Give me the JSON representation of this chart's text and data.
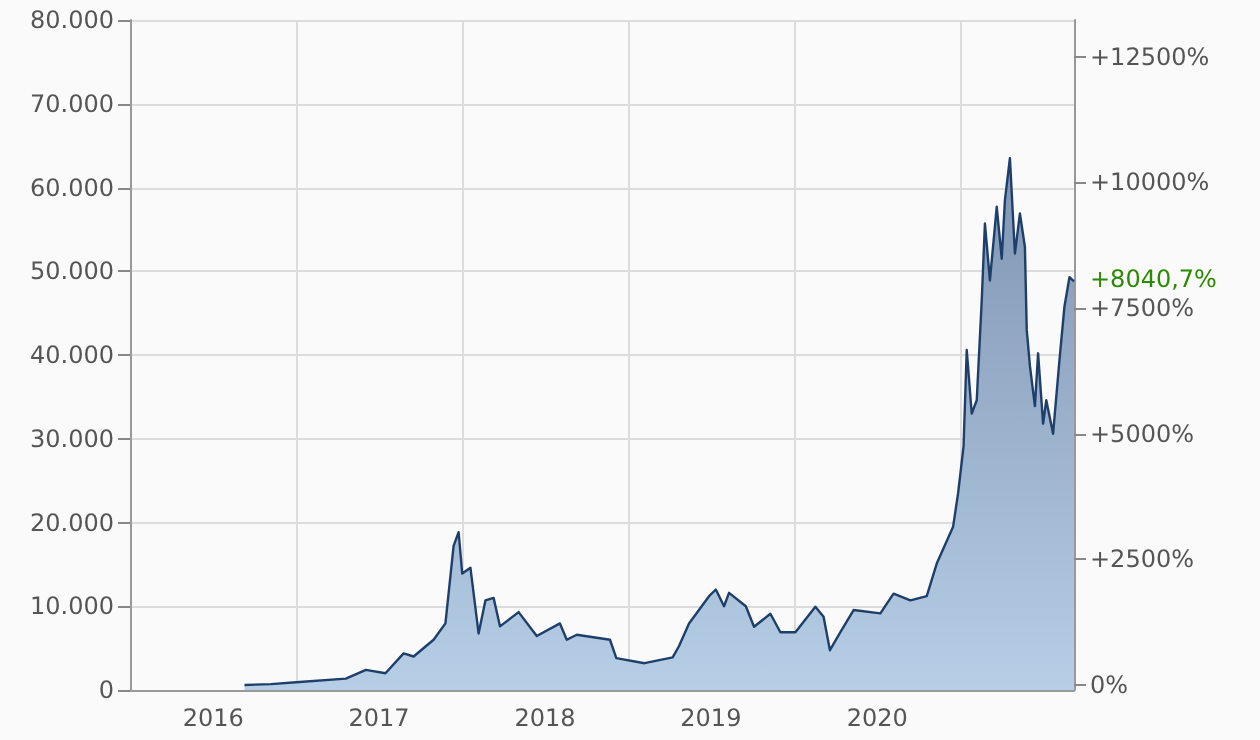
{
  "chart_data": {
    "type": "area",
    "x": [
      "2016-09-09",
      "2016-11-06",
      "2017-01-08",
      "2017-04-20",
      "2017-06-03",
      "2017-07-16",
      "2017-08-25",
      "2017-09-16",
      "2017-10-30",
      "2017-11-25",
      "2017-12-13",
      "2017-12-24",
      "2018-01-01",
      "2018-01-19",
      "2018-02-06",
      "2018-02-21",
      "2018-03-11",
      "2018-03-25",
      "2018-05-05",
      "2018-06-14",
      "2018-08-04",
      "2018-08-19",
      "2018-09-10",
      "2018-11-22",
      "2018-12-06",
      "2019-02-06",
      "2019-04-09",
      "2019-04-23",
      "2019-05-15",
      "2019-06-28",
      "2019-07-13",
      "2019-07-31",
      "2019-08-11",
      "2019-09-17",
      "2019-10-05",
      "2019-11-10",
      "2019-12-02",
      "2020-01-04",
      "2020-02-17",
      "2020-03-06",
      "2020-03-20",
      "2020-04-12",
      "2020-05-11",
      "2020-07-09",
      "2020-08-07",
      "2020-09-13",
      "2020-10-19",
      "2020-11-10",
      "2020-12-16",
      "2020-12-27",
      "2021-01-08",
      "2021-01-15",
      "2021-01-26",
      "2021-02-06",
      "2021-02-17",
      "2021-02-24",
      "2021-03-07",
      "2021-03-22",
      "2021-04-02",
      "2021-04-09",
      "2021-04-20",
      "2021-05-01",
      "2021-05-12",
      "2021-05-23",
      "2021-05-27",
      "2021-06-03",
      "2021-06-14",
      "2021-06-21",
      "2021-07-02",
      "2021-07-09",
      "2021-07-24",
      "2021-08-07",
      "2021-08-18",
      "2021-08-29",
      "2021-09-08"
    ],
    "series": [
      {
        "color": "#1f3f6b",
        "values": [
          600,
          700,
          950,
          1360,
          2400,
          2000,
          4370,
          4000,
          6000,
          7950,
          17200,
          18850,
          13900,
          14600,
          6750,
          10700,
          11000,
          7600,
          9300,
          6450,
          7950,
          6000,
          6600,
          6000,
          3800,
          3200,
          3900,
          5250,
          7950,
          11200,
          12000,
          10000,
          11600,
          10000,
          7550,
          9100,
          6900,
          6900,
          9950,
          8750,
          4750,
          6900,
          9550,
          9150,
          11500,
          10700,
          11200,
          15100,
          19500,
          23500,
          29100,
          40600,
          33000,
          34600,
          46500,
          55700,
          48900,
          57700,
          51500,
          58500,
          63500,
          52100,
          56900,
          52900,
          43000,
          38700,
          33900,
          40200,
          31800,
          34600,
          30600,
          39400,
          45800,
          49300,
          48800
        ]
      }
    ],
    "xlim": [
      "2016-01-01",
      "2021-09-08"
    ],
    "xticks": [
      {
        "value": "2016-07-02",
        "label": "2016"
      },
      {
        "value": "2017-01-01",
        "label": null
      },
      {
        "value": "2017-07-02",
        "label": "2017"
      },
      {
        "value": "2018-01-01",
        "label": null
      },
      {
        "value": "2018-07-02",
        "label": "2018"
      },
      {
        "value": "2019-01-01",
        "label": null
      },
      {
        "value": "2019-07-02",
        "label": "2019"
      },
      {
        "value": "2020-01-01",
        "label": null
      },
      {
        "value": "2020-07-02",
        "label": "2020"
      },
      {
        "value": "2021-01-01",
        "label": null
      }
    ],
    "ylim": [
      0,
      80000
    ],
    "yticks": [
      {
        "value": 0,
        "label": "0"
      },
      {
        "value": 10000,
        "label": "10.000"
      },
      {
        "value": 20000,
        "label": "20.000"
      },
      {
        "value": 30000,
        "label": "30.000"
      },
      {
        "value": 40000,
        "label": "40.000"
      },
      {
        "value": 50000,
        "label": "50.000"
      },
      {
        "value": 60000,
        "label": "60.000"
      },
      {
        "value": 70000,
        "label": "70.000"
      },
      {
        "value": 80000,
        "label": "80.000"
      }
    ],
    "y2lim": [
      -100,
      13233
    ],
    "y2ticks": [
      {
        "value": 0,
        "label": "0%"
      },
      {
        "value": 2500,
        "label": "+2500%"
      },
      {
        "value": 5000,
        "label": "+5000%"
      },
      {
        "value": 7500,
        "label": "+7500%"
      },
      {
        "value": 10000,
        "label": "+10000%"
      },
      {
        "value": 12500,
        "label": "+12500%"
      }
    ],
    "annotations": [
      {
        "text": "+8040,7%",
        "x": "2021-09-08",
        "y": 48800
      }
    ],
    "grid": true,
    "marker": "none"
  }
}
